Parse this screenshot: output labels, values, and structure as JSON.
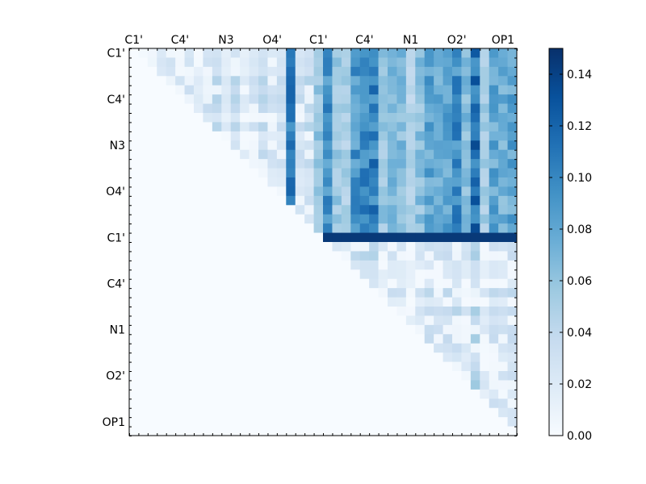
{
  "chart_data": {
    "type": "heatmap",
    "title": "",
    "xlabel": "",
    "ylabel": "",
    "n": 42,
    "tick_labels": [
      "C1'",
      "C4'",
      "N3",
      "O4'",
      "C1'",
      "C4'",
      "N1",
      "O2'",
      "OP1"
    ],
    "tick_index": [
      0,
      5,
      10,
      15,
      20,
      25,
      30,
      35,
      40
    ],
    "colormap": {
      "name": "Blues",
      "low": "#f7fbff",
      "high": "#08306b"
    },
    "colorbar": {
      "min": 0.0,
      "max": 0.15,
      "ticks": [
        0.0,
        0.02,
        0.04,
        0.06,
        0.08,
        0.1,
        0.12,
        0.14
      ],
      "tick_labels": [
        "0.00",
        "0.02",
        "0.04",
        "0.06",
        "0.08",
        "0.10",
        "0.12",
        "0.14"
      ]
    },
    "structure": "upper triangle only; lower triangle and diagonal are 0",
    "blocks": {
      "top_left_mean": 0.025,
      "off_diagonal_mean": 0.085,
      "bottom_right_mean": 0.03,
      "row_20_21_value": 0.145,
      "col_17_value": 0.12
    }
  }
}
